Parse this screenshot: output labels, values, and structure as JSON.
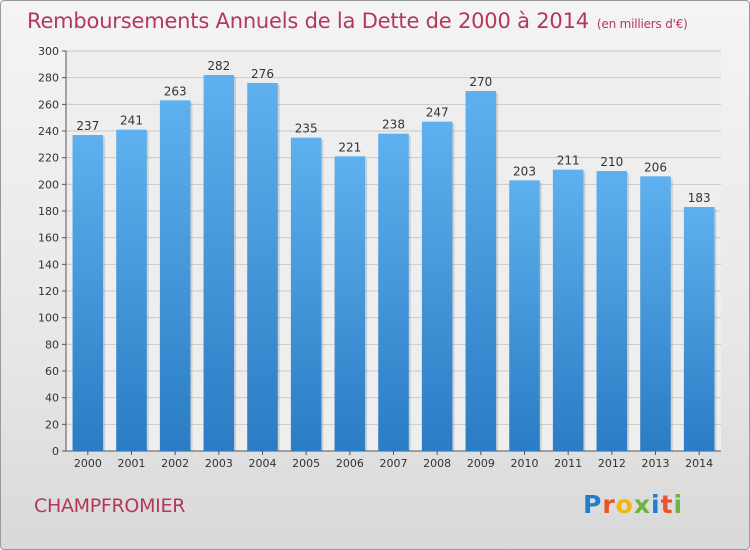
{
  "chart_title": "Remboursements Annuels de la Dette de 2000 à 2014",
  "chart_subtitle": "(en milliers d'€)",
  "commune_name": "CHAMPFROMIER",
  "logo": {
    "text": "Proxiti",
    "colors": [
      "#1f7fcf",
      "#e8542b",
      "#f1b60f",
      "#6db33f",
      "#1f7fcf",
      "#e8542b",
      "#6db33f"
    ]
  },
  "colors": {
    "bar_light": "#5eb1ee",
    "bar_dark": "#2a7cc4",
    "title": "#b5375a",
    "grid": "#c9c9c9"
  },
  "chart_data": {
    "type": "bar",
    "title": "Remboursements Annuels de la Dette de 2000 à 2014",
    "subtitle": "(en milliers d'€)",
    "categories": [
      "2000",
      "2001",
      "2002",
      "2003",
      "2004",
      "2005",
      "2006",
      "2007",
      "2008",
      "2009",
      "2010",
      "2011",
      "2012",
      "2013",
      "2014"
    ],
    "values": [
      237,
      241,
      263,
      282,
      276,
      235,
      221,
      238,
      247,
      270,
      203,
      211,
      210,
      206,
      183
    ],
    "ylim": [
      0,
      300
    ],
    "yticks": [
      0,
      20,
      40,
      60,
      80,
      100,
      120,
      140,
      160,
      180,
      200,
      220,
      240,
      260,
      280,
      300
    ],
    "grid": true,
    "xlabel": "",
    "ylabel": ""
  }
}
